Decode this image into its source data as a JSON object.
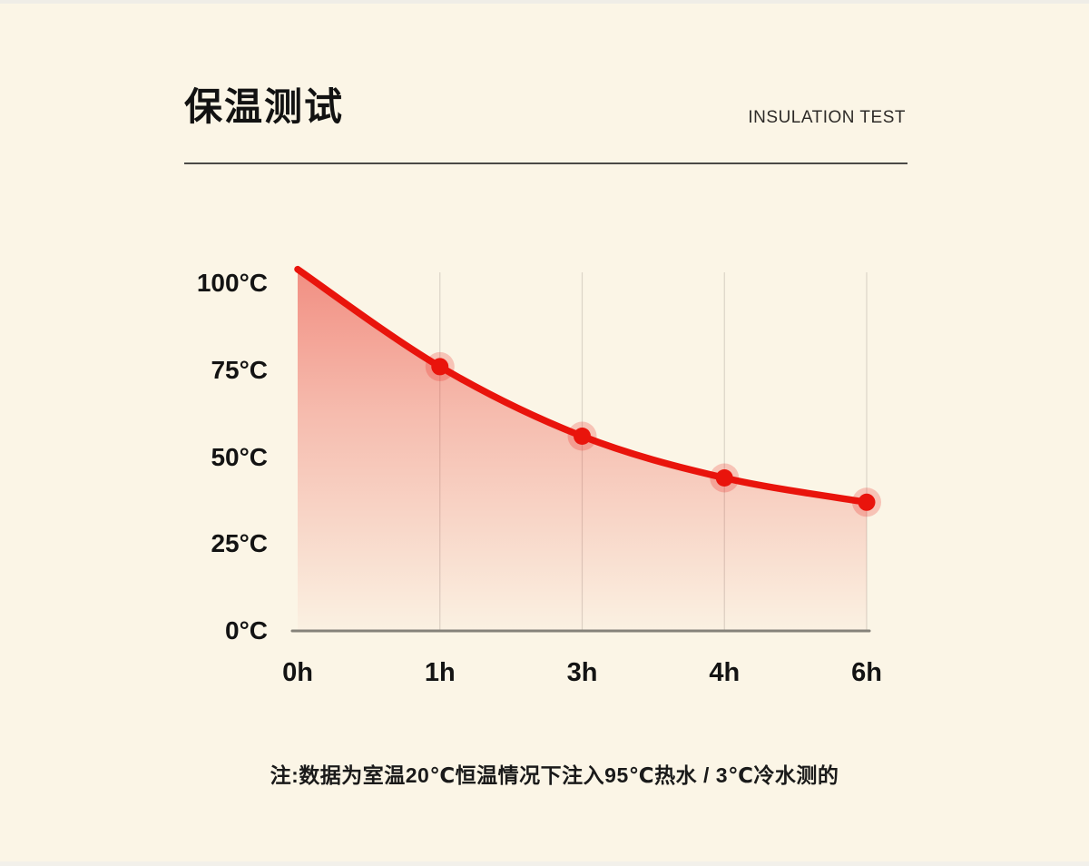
{
  "page": {
    "background_color": "#FBF5E6"
  },
  "header": {
    "title": "保温测试",
    "subtitle": "INSULATION TEST"
  },
  "chart_data": {
    "type": "area",
    "title": "保温测试 / INSULATION TEST",
    "categories": [
      "0h",
      "1h",
      "3h",
      "4h",
      "6h"
    ],
    "values": [
      104,
      76,
      56,
      44,
      37
    ],
    "unit": "°C",
    "xlabel": "",
    "ylabel": "",
    "y_ticks": [
      100,
      75,
      50,
      25,
      0
    ],
    "y_tick_labels": [
      "100°C",
      "75°C",
      "50°C",
      "25°C",
      "0°C"
    ],
    "ylim": [
      0,
      105
    ],
    "grid": "vertical-only",
    "legend": "none",
    "markers": [
      false,
      true,
      true,
      true,
      true
    ],
    "line_color": "#E9140C",
    "marker_color": "#E9140C",
    "marker_halo_color": "rgba(233,20,12,0.22)",
    "fill_color": "#E8281E",
    "gridline_color": "#DBD4C7",
    "axis_line_color": "#85827A"
  },
  "footnote": "注:数据为室温20℃恒温情况下注入95℃热水 / 3℃冷水测的"
}
